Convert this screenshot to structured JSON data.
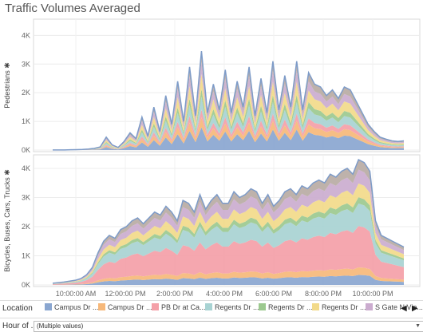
{
  "title": "Traffic Volumes Averaged",
  "chart_data": {
    "type": "area",
    "stacked": true,
    "x_labels": [
      "10:00:00 AM",
      "12:00:00 PM",
      "2:00:00 PM",
      "4:00:00 PM",
      "6:00:00 PM",
      "8:00:00 PM",
      "10:00:00 PM"
    ],
    "series_names": [
      "Campus Dr ...",
      "Campus Dr ...",
      "PB Dr at Ca...",
      "Regents Dr ...",
      "Regents Dr ...",
      "Regents Dr ...",
      "S Gate N Vie..."
    ],
    "colors": [
      "#8aa6d0",
      "#f6b87a",
      "#f4a0a8",
      "#a8d3d3",
      "#9cc98f",
      "#f2da8a",
      "#cbaccf",
      "#b9aba4"
    ],
    "panels": [
      {
        "ylabel": "Pedestrians ✱",
        "yticks": [
          "0K",
          "1K",
          "2K",
          "3K",
          "4K"
        ],
        "ylim": [
          0,
          4400
        ],
        "totals": [
          5,
          5,
          5,
          10,
          15,
          20,
          35,
          60,
          110,
          450,
          180,
          90,
          300,
          600,
          400,
          1150,
          480,
          1500,
          650,
          1900,
          900,
          2400,
          1000,
          2900,
          1200,
          3450,
          1300,
          2300,
          1400,
          2800,
          1300,
          2400,
          1500,
          2900,
          1200,
          2500,
          1300,
          3100,
          1400,
          2600,
          1500,
          3100,
          1400,
          2700,
          2300,
          2200,
          1900,
          2100,
          1800,
          2200,
          2100,
          1700,
          1300,
          900,
          650,
          450,
          380,
          320,
          300,
          320
        ],
        "layer_shares": [
          0.23,
          0.1,
          0.08,
          0.13,
          0.08,
          0.15,
          0.12,
          0.11
        ]
      },
      {
        "ylabel": "Bicycles, Buses, Cars, Trucks ✱",
        "yticks": [
          "0K",
          "1K",
          "2K",
          "3K",
          "4K"
        ],
        "ylim": [
          0,
          4300
        ],
        "totals": [
          60,
          80,
          100,
          130,
          160,
          220,
          350,
          600,
          1100,
          1500,
          1700,
          1600,
          1900,
          2000,
          2200,
          2300,
          2100,
          2300,
          2500,
          2400,
          2700,
          2500,
          2200,
          2900,
          2800,
          2500,
          3100,
          2600,
          2900,
          3100,
          2800,
          2800,
          3200,
          3000,
          3100,
          3300,
          3200,
          2800,
          3100,
          2700,
          2900,
          3200,
          3300,
          3100,
          3400,
          3300,
          3500,
          3600,
          3500,
          3800,
          3700,
          3900,
          4000,
          3800,
          4300,
          4200,
          3900,
          2200,
          1700,
          1600,
          1500,
          1400,
          1300
        ],
        "layer_shares": [
          0.08,
          0.06,
          0.33,
          0.18,
          0.05,
          0.11,
          0.11,
          0.08
        ]
      }
    ]
  },
  "legend": {
    "title": "Location",
    "prev_label": "◀",
    "next_label": "▶"
  },
  "filter": {
    "label": "Hour of ...",
    "value": "(Multiple values)",
    "arrow": "▼"
  }
}
